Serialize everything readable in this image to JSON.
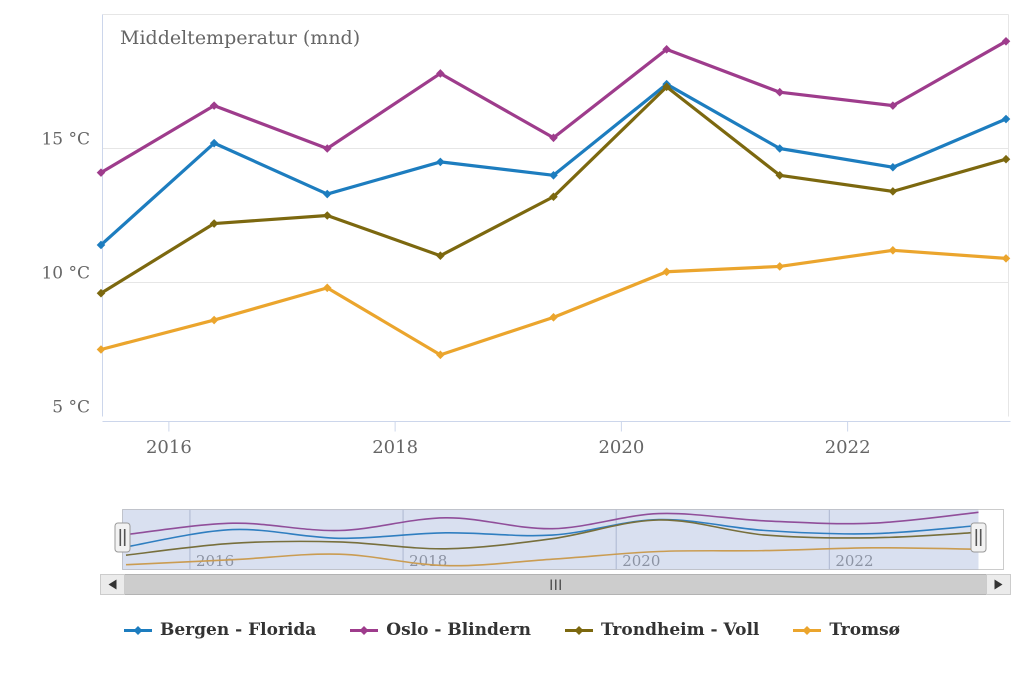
{
  "chart_data": {
    "type": "line",
    "title": "Middeltemperatur (mnd)",
    "x": [
      2015.4,
      2016.4,
      2017.4,
      2018.4,
      2019.4,
      2020.4,
      2021.4,
      2022.4,
      2023.4
    ],
    "x_note": "annual mid-year (summer month) mean temperature points",
    "series": [
      {
        "name": "Bergen - Florida",
        "color": "#1d7dbf",
        "values": [
          11.4,
          15.2,
          13.3,
          14.5,
          14.0,
          17.4,
          15.0,
          14.3,
          16.1
        ]
      },
      {
        "name": "Oslo - Blindern",
        "color": "#9e3c8c",
        "values": [
          14.1,
          16.6,
          15.0,
          17.8,
          15.4,
          18.7,
          17.1,
          16.6,
          19.0
        ]
      },
      {
        "name": "Trondheim - Voll",
        "color": "#7c680f",
        "values": [
          9.6,
          12.2,
          12.5,
          11.0,
          13.2,
          17.3,
          14.0,
          13.4,
          14.6
        ]
      },
      {
        "name": "Tromsø",
        "color": "#eba52d",
        "values": [
          7.5,
          8.6,
          9.8,
          7.3,
          8.7,
          10.4,
          10.6,
          11.2,
          10.9
        ]
      }
    ],
    "ylim": [
      5,
      20
    ],
    "yticks": [
      {
        "value": 5,
        "label": "5 °C"
      },
      {
        "value": 10,
        "label": "10 °C"
      },
      {
        "value": 15,
        "label": "15 °C"
      }
    ],
    "xticks": [
      {
        "value": 2016,
        "label": "2016"
      },
      {
        "value": 2018,
        "label": "2018"
      },
      {
        "value": 2020,
        "label": "2020"
      },
      {
        "value": 2022,
        "label": "2022"
      }
    ],
    "grid": "horizontal",
    "legend_position": "bottom",
    "xlabel": "",
    "ylabel": ""
  },
  "navigator": {
    "xticks": [
      {
        "value": 2016,
        "label": "2016"
      },
      {
        "value": 2018,
        "label": "2018"
      },
      {
        "value": 2020,
        "label": "2020"
      },
      {
        "value": 2022,
        "label": "2022"
      }
    ],
    "selection": "full range selected",
    "mask_color": "rgba(102,133,194,0.25)",
    "handle_icon": "||"
  },
  "scrollbar": {
    "left_arrow_icon": "triangle-left",
    "right_arrow_icon": "triangle-right",
    "grip_icon": "|||"
  },
  "colors": {
    "axis_line": "#ccd6eb",
    "grid_line": "#e6e6e6",
    "axis_text": "#666666",
    "nav_text": "#999999",
    "legend_text": "#333333"
  }
}
